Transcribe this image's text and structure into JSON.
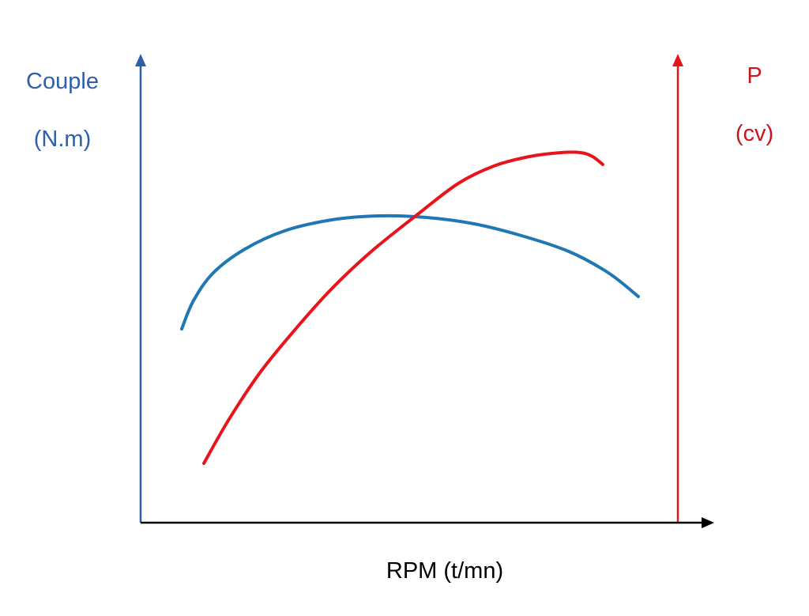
{
  "chart_data": {
    "type": "line",
    "title": "",
    "xlabel": "RPM (t/mn)",
    "ylabel_left": [
      "Couple",
      "(N.m)"
    ],
    "ylabel_right": [
      "P",
      "(cv)"
    ],
    "x_ticks": false,
    "y_ticks": false,
    "grid": false,
    "legend": "none",
    "colors": {
      "left_axis": "#2e5fa8",
      "right_axis": "#e8141c",
      "x_axis": "#000000",
      "torque": "#1f77b4",
      "power": "#e8141c"
    },
    "series": [
      {
        "axis": "left",
        "color_key": "torque",
        "points": [
          [
            230,
            416
          ],
          [
            245,
            380
          ],
          [
            270,
            345
          ],
          [
            310,
            315
          ],
          [
            360,
            292
          ],
          [
            420,
            278
          ],
          [
            480,
            273
          ],
          [
            540,
            275
          ],
          [
            600,
            283
          ],
          [
            660,
            298
          ],
          [
            720,
            318
          ],
          [
            770,
            345
          ],
          [
            808,
            375
          ]
        ]
      },
      {
        "axis": "right",
        "color_key": "power",
        "points": [
          [
            258,
            586
          ],
          [
            290,
            530
          ],
          [
            330,
            470
          ],
          [
            375,
            415
          ],
          [
            420,
            365
          ],
          [
            470,
            318
          ],
          [
            530,
            270
          ],
          [
            580,
            232
          ],
          [
            625,
            210
          ],
          [
            670,
            198
          ],
          [
            710,
            193
          ],
          [
            735,
            193
          ],
          [
            750,
            198
          ],
          [
            763,
            208
          ]
        ]
      }
    ]
  }
}
